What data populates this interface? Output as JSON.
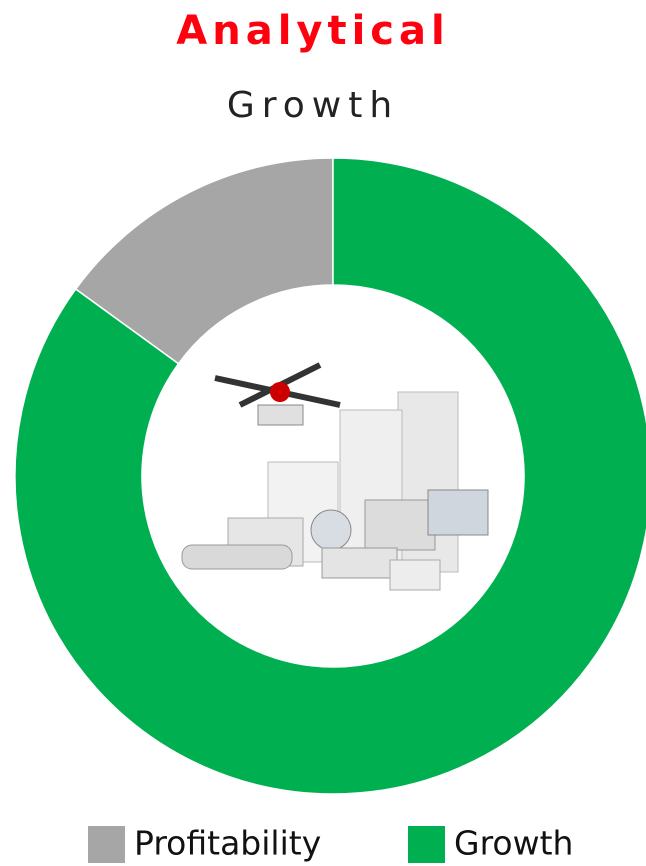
{
  "chart_data": {
    "type": "donut",
    "title": "Analytical",
    "subtitle": "Growth",
    "categories": [
      "Profitability",
      "Growth"
    ],
    "values": [
      15,
      85
    ],
    "colors": [
      "#a6a6a6",
      "#00b050"
    ],
    "legend": "bottom"
  }
}
